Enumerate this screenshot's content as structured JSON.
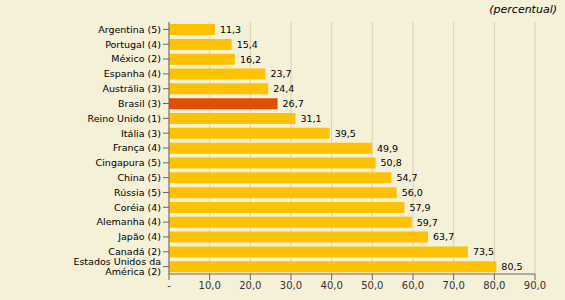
{
  "chart_data": {
    "type": "bar",
    "orientation": "horizontal",
    "annotation": "(percentual)",
    "categories": [
      "Estados Unidos da América (2)",
      "Canadá (2)",
      "Japão (4)",
      "Alemanha (4)",
      "Coréia (4)",
      "Rússia (5)",
      "China (5)",
      "Cingapura (5)",
      "França (4)",
      "Itália (3)",
      "Reino Unido (1)",
      "Brasil (3)",
      "Austrália (3)",
      "Espanha (4)",
      "México (2)",
      "Portugal (4)",
      "Argentina (5)"
    ],
    "values": [
      80.5,
      73.5,
      63.7,
      59.7,
      57.9,
      56.0,
      54.7,
      50.8,
      49.9,
      39.5,
      31.1,
      26.7,
      24.4,
      23.7,
      16.2,
      15.4,
      11.3
    ],
    "value_labels": [
      "80,5",
      "73,5",
      "63,7",
      "59,7",
      "57,9",
      "56,0",
      "54,7",
      "50,8",
      "49,9",
      "39,5",
      "31,1",
      "26,7",
      "24,4",
      "23,7",
      "16,2",
      "15,4",
      "11,3"
    ],
    "data_labels": true,
    "colors": [
      "#FFC200",
      "#FFC200",
      "#FFC200",
      "#FFC200",
      "#FFC200",
      "#FFC200",
      "#FFC200",
      "#FFC200",
      "#FFC200",
      "#FFC200",
      "#FFC200",
      "#E05000",
      "#FFC200",
      "#FFC200",
      "#FFC200",
      "#FFC200",
      "#FFC200"
    ],
    "xlim": [
      0,
      90
    ],
    "xticks": [
      {
        "value": 0,
        "label": "-"
      },
      {
        "value": 10,
        "label": "10,0"
      },
      {
        "value": 20,
        "label": "20,0"
      },
      {
        "value": 30,
        "label": "30,0"
      },
      {
        "value": 40,
        "label": "40,0"
      },
      {
        "value": 50,
        "label": "50,0"
      },
      {
        "value": 60,
        "label": "60,0"
      },
      {
        "value": 70,
        "label": "70,0"
      },
      {
        "value": 80,
        "label": "80,0"
      },
      {
        "value": 90,
        "label": "90,0"
      }
    ],
    "grid": true
  }
}
